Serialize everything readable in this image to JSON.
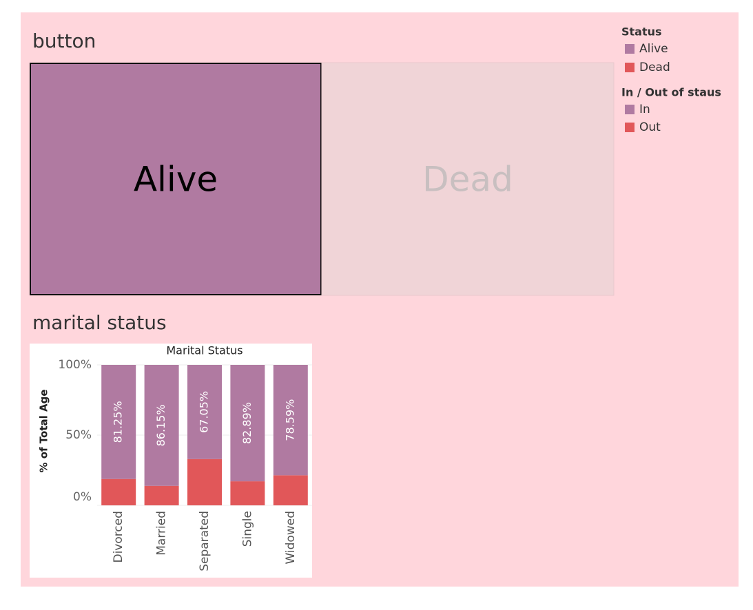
{
  "dashboard": {
    "button_title": "button",
    "buttons": [
      {
        "label": "Alive"
      },
      {
        "label": "Dead"
      }
    ],
    "section_title": "marital status",
    "status_legend": {
      "title": "Status",
      "items": [
        {
          "label": "Alive",
          "color": "#b07aa1"
        },
        {
          "label": "Dead",
          "color": "#e15759"
        }
      ]
    }
  },
  "chart_data": {
    "type": "stacked_bar",
    "title": "Marital Status",
    "y_label": "% of Total Age",
    "legend_title": "In / Out of staus",
    "categories": [
      "Divorced",
      "Married",
      "Separated",
      "Single",
      "Widowed"
    ],
    "series": [
      {
        "name": "Out",
        "color": "#e15759",
        "values": [
          18.75,
          13.85,
          32.95,
          17.11,
          21.41
        ]
      },
      {
        "name": "In",
        "color": "#b07aa1",
        "values": [
          81.25,
          86.15,
          67.05,
          82.89,
          78.59
        ],
        "value_labels": [
          "81.25%",
          "86.15%",
          "67.05%",
          "82.89%",
          "78.59%"
        ]
      }
    ],
    "ylim": [
      0,
      100
    ],
    "yticks": [
      {
        "value": 0,
        "label": "0%"
      },
      {
        "value": 50,
        "label": "50%"
      },
      {
        "value": 100,
        "label": "100%"
      }
    ],
    "grid": true
  }
}
